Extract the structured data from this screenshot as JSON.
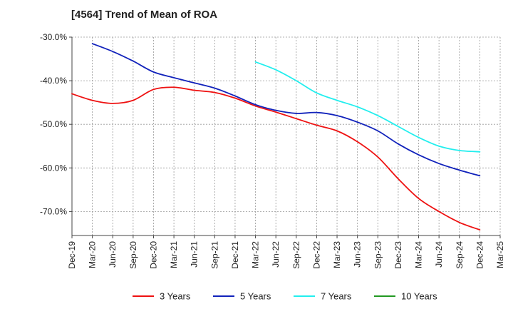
{
  "chart_data": {
    "type": "line",
    "title": "[4564]  Trend of Mean of ROA",
    "xlabel": "",
    "ylabel": "",
    "ylim": [
      -75.5,
      -30.0
    ],
    "yticks": [
      -30.0,
      -40.0,
      -50.0,
      -60.0,
      -70.0
    ],
    "ytick_labels": [
      "-30.0%",
      "-40.0%",
      "-50.0%",
      "-60.0%",
      "-70.0%"
    ],
    "categories": [
      "Dec-19",
      "Mar-20",
      "Jun-20",
      "Sep-20",
      "Dec-20",
      "Mar-21",
      "Jun-21",
      "Sep-21",
      "Dec-21",
      "Mar-22",
      "Jun-22",
      "Sep-22",
      "Dec-22",
      "Mar-23",
      "Jun-23",
      "Sep-23",
      "Dec-23",
      "Mar-24",
      "Jun-24",
      "Sep-24",
      "Dec-24",
      "Mar-25"
    ],
    "series": [
      {
        "name": "3 Years",
        "color": "#ee1111",
        "values": [
          -43.0,
          -44.5,
          -45.2,
          -44.5,
          -42.0,
          -41.5,
          -42.2,
          -42.7,
          -44.0,
          -45.8,
          -47.2,
          -48.7,
          -50.2,
          -51.5,
          -54.0,
          -57.5,
          -62.5,
          -67.0,
          -70.0,
          -72.5,
          -74.2,
          null
        ]
      },
      {
        "name": "5 Years",
        "color": "#1122bb",
        "values": [
          null,
          -31.5,
          -33.3,
          -35.5,
          -38.0,
          -39.3,
          -40.5,
          -41.7,
          -43.5,
          -45.5,
          -46.8,
          -47.5,
          -47.3,
          -48.0,
          -49.5,
          -51.5,
          -54.5,
          -57.0,
          -59.0,
          -60.5,
          -61.8,
          null
        ]
      },
      {
        "name": "7 Years",
        "color": "#22eeee",
        "values": [
          null,
          null,
          null,
          null,
          null,
          null,
          null,
          null,
          null,
          -35.7,
          -37.5,
          -40.0,
          -42.8,
          -44.5,
          -46.0,
          -48.0,
          -50.5,
          -53.0,
          -55.0,
          -56.0,
          -56.3,
          null
        ]
      },
      {
        "name": "10 Years",
        "color": "#229922",
        "values": [
          null,
          null,
          null,
          null,
          null,
          null,
          null,
          null,
          null,
          null,
          null,
          null,
          null,
          null,
          null,
          null,
          null,
          null,
          null,
          null,
          null,
          null
        ]
      }
    ],
    "grid": true,
    "legend_position": "bottom"
  }
}
